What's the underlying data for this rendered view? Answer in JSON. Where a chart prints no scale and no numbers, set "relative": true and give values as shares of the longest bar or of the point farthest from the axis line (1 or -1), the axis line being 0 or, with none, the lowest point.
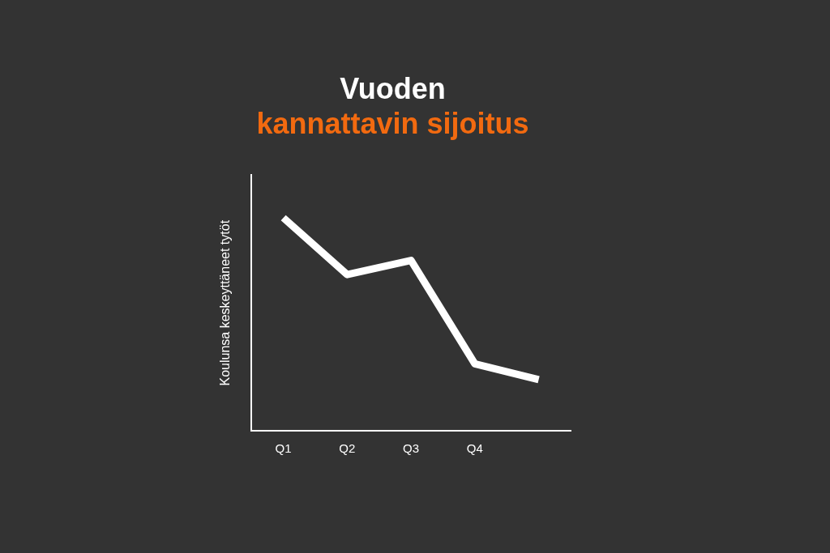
{
  "chart_data": {
    "type": "line",
    "title": "Vuoden",
    "subtitle": "kannattavin sijoitus",
    "ylabel": "Koulunsa keskeyttäneet tytöt",
    "relative": true,
    "categories": [
      "Q1",
      "Q2",
      "Q3",
      "Q4",
      null
    ],
    "series": [
      {
        "color": "#ffffff",
        "values": [
          1,
          0.733,
          0.8,
          0.314,
          0.24
        ]
      }
    ],
    "grid": false,
    "legend": false,
    "marker": "none",
    "line_style": "solid"
  }
}
